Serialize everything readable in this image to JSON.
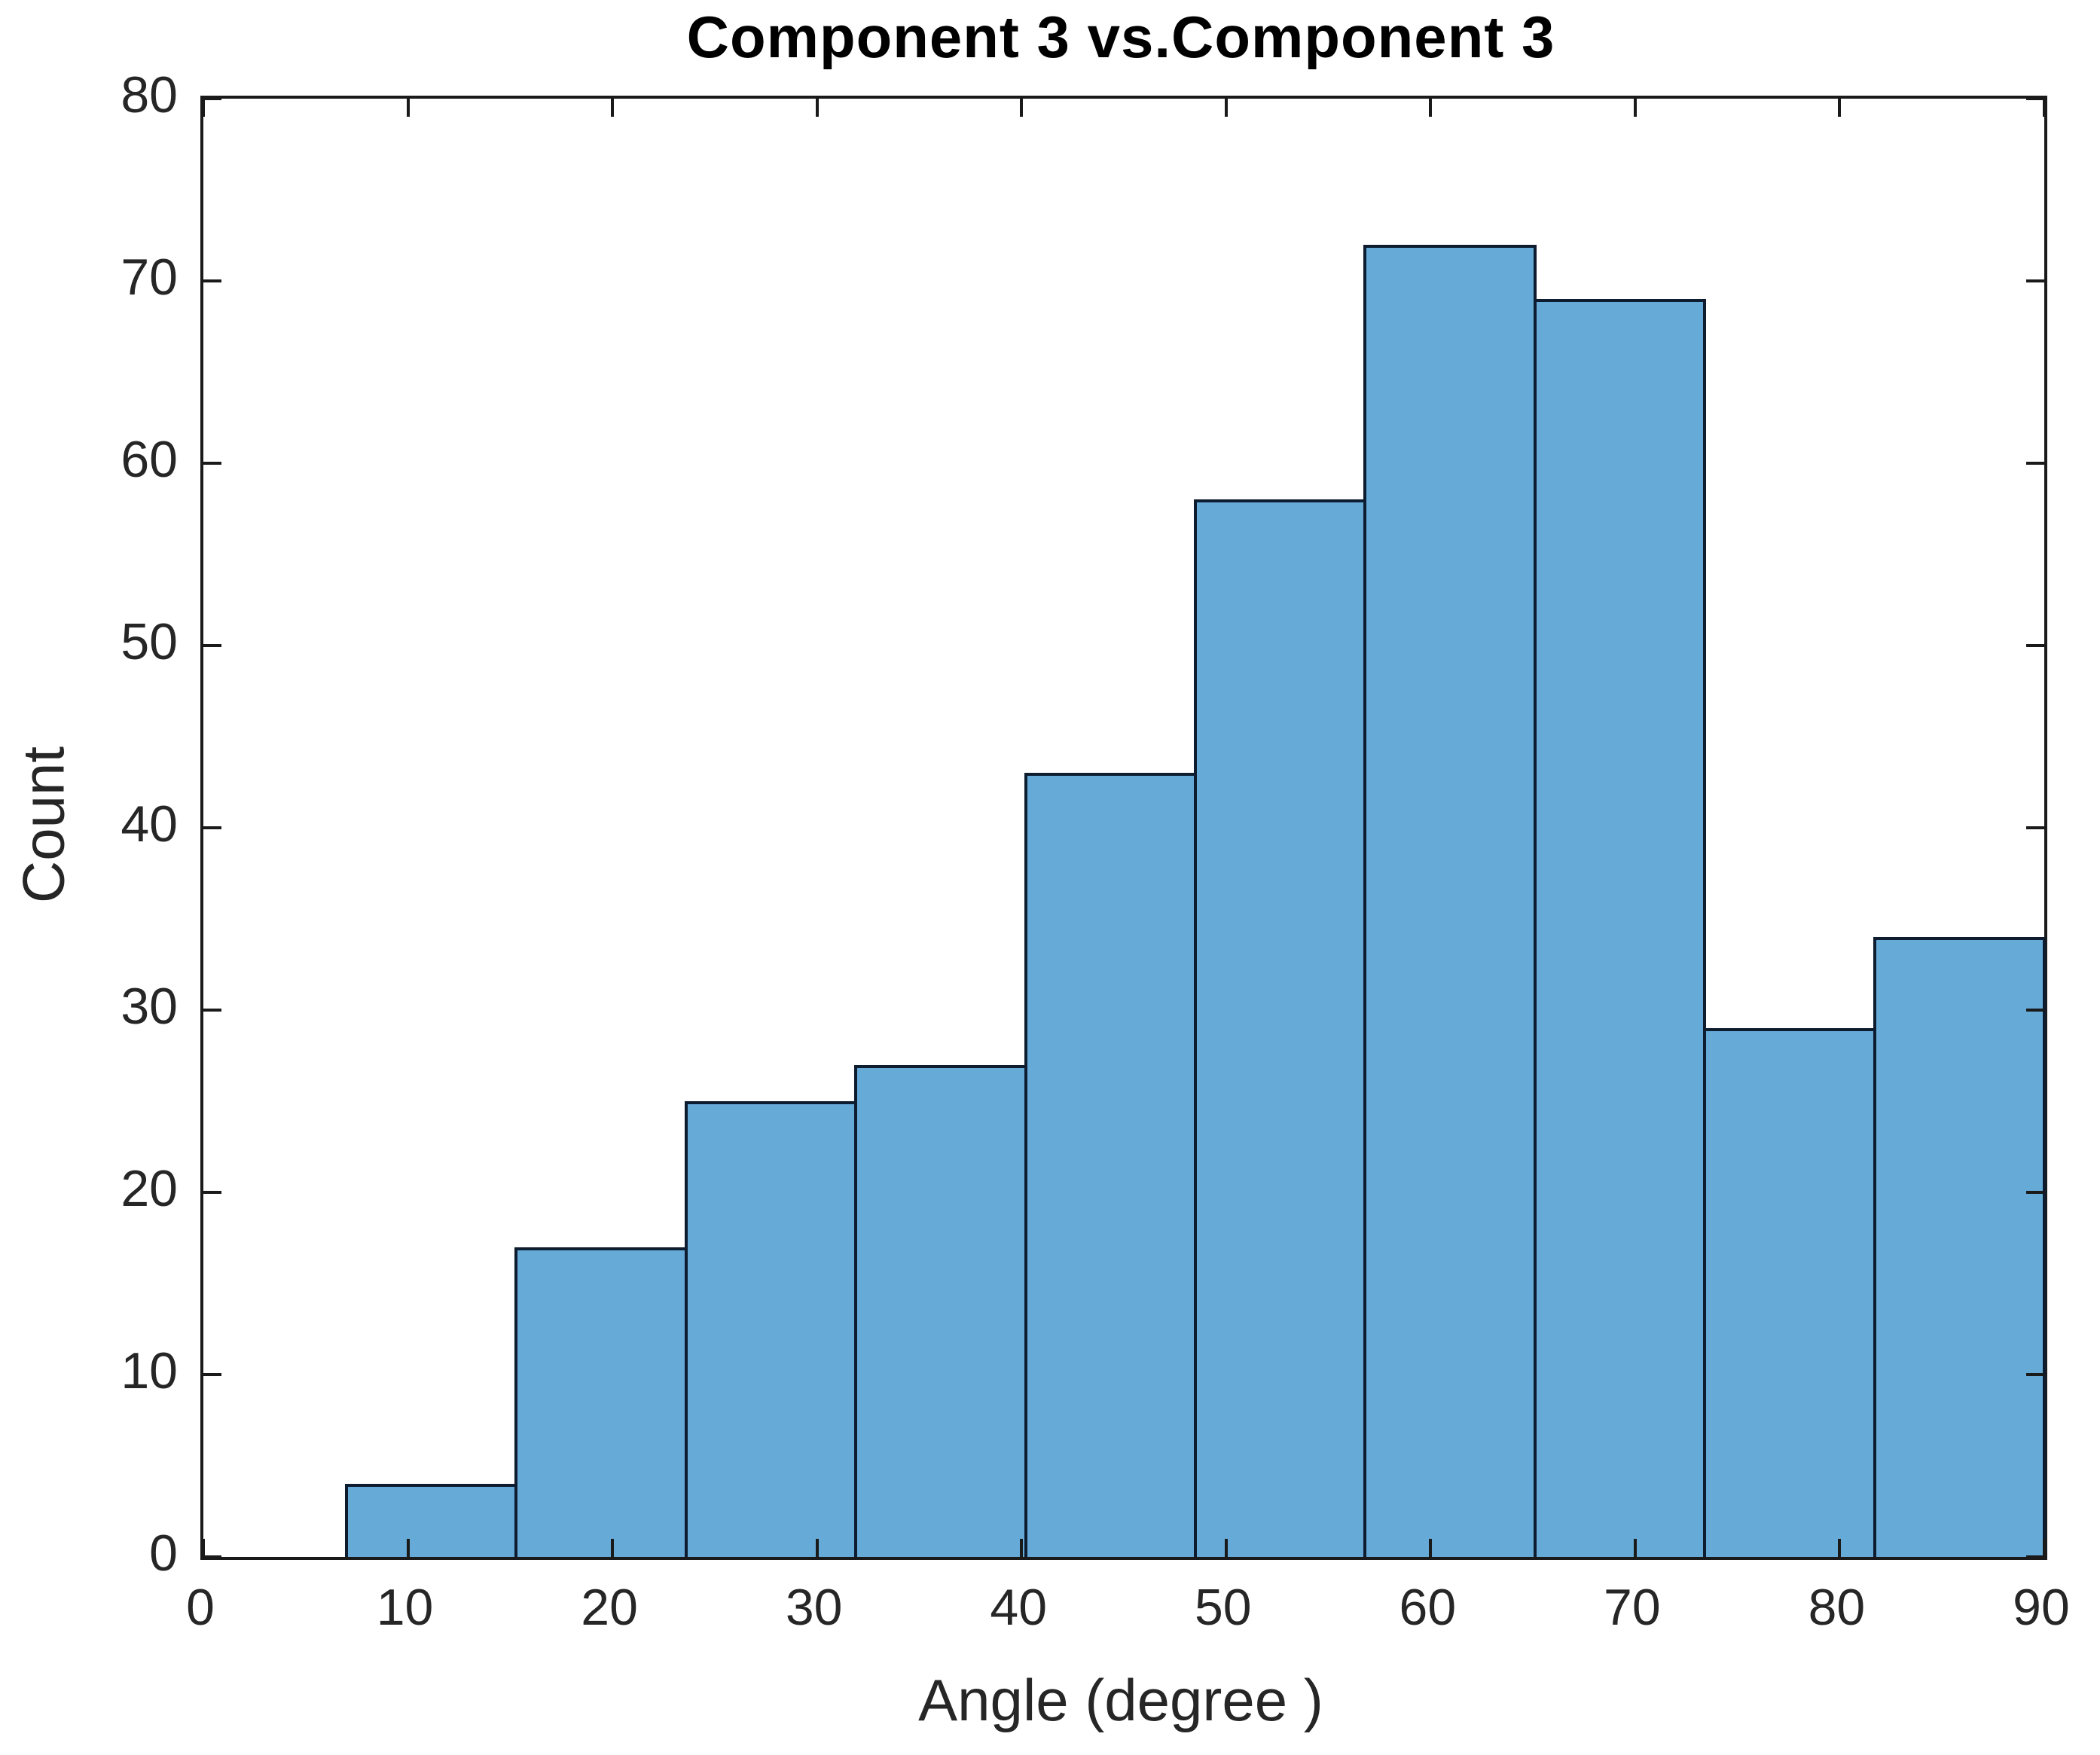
{
  "figure": {
    "title": "Component 3 vs.Component 3",
    "xlabel": "Angle (degree )",
    "ylabel": "Count"
  },
  "chart_data": {
    "type": "bar",
    "subtype": "histogram",
    "title": "Component 3 vs.Component 3",
    "xlabel": "Angle (degree )",
    "ylabel": "Count",
    "bin_edges": [
      7,
      15.3,
      23.6,
      31.9,
      40.2,
      48.5,
      56.8,
      65.1,
      73.4,
      81.7,
      90
    ],
    "counts": [
      4,
      17,
      25,
      27,
      43,
      58,
      72,
      69,
      29,
      34
    ],
    "xlim": [
      0,
      90
    ],
    "ylim": [
      0,
      80
    ],
    "x_ticks": [
      0,
      10,
      20,
      30,
      40,
      50,
      60,
      70,
      80,
      90
    ],
    "y_ticks": [
      0,
      10,
      20,
      30,
      40,
      50,
      60,
      70,
      80
    ],
    "grid": false,
    "legend_position": "none",
    "colors": {
      "bar_fill": "#66AAD8",
      "bar_edge": "#0E1C30",
      "axis": "#1A1A1A",
      "tick_text": "#262626",
      "title_text": "#000000",
      "background": "#FFFFFF"
    }
  }
}
